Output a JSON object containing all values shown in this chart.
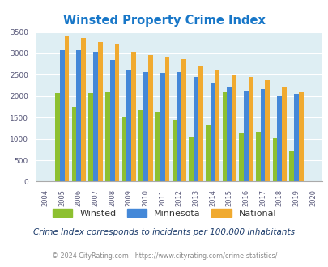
{
  "title": "Winsted Property Crime Index",
  "title_color": "#1877c8",
  "years": [
    2004,
    2005,
    2006,
    2007,
    2008,
    2009,
    2010,
    2011,
    2012,
    2013,
    2014,
    2015,
    2016,
    2017,
    2018,
    2019,
    2020
  ],
  "winsted": [
    0,
    2080,
    1750,
    2080,
    2100,
    1500,
    1680,
    1640,
    1450,
    1040,
    1310,
    2090,
    1150,
    1160,
    1010,
    700,
    0
  ],
  "minnesota": [
    0,
    3080,
    3080,
    3040,
    2850,
    2630,
    2570,
    2550,
    2570,
    2460,
    2310,
    2210,
    2130,
    2170,
    2000,
    2060,
    0
  ],
  "national": [
    0,
    3420,
    3360,
    3270,
    3200,
    3040,
    2960,
    2910,
    2870,
    2720,
    2600,
    2490,
    2450,
    2380,
    2200,
    2100,
    0
  ],
  "winsted_color": "#8dc030",
  "minnesota_color": "#4488d8",
  "national_color": "#f0aa30",
  "background_color": "#deeef3",
  "grid_color": "#ffffff",
  "ylim": [
    0,
    3500
  ],
  "yticks": [
    0,
    500,
    1000,
    1500,
    2000,
    2500,
    3000,
    3500
  ],
  "footnote": "Crime Index corresponds to incidents per 100,000 inhabitants",
  "copyright": "© 2024 CityRating.com - https://www.cityrating.com/crime-statistics/",
  "footnote_color": "#1a3a6a",
  "copyright_color": "#888888",
  "legend_labels": [
    "Winsted",
    "Minnesota",
    "National"
  ]
}
